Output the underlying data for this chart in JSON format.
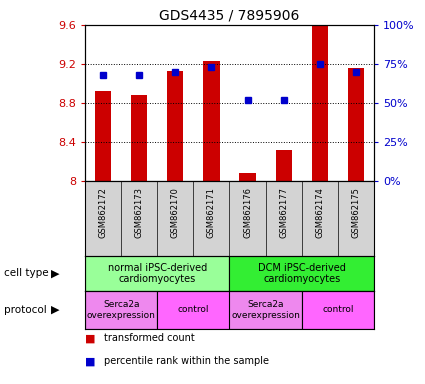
{
  "title": "GDS4435 / 7895906",
  "samples": [
    "GSM862172",
    "GSM862173",
    "GSM862170",
    "GSM862171",
    "GSM862176",
    "GSM862177",
    "GSM862174",
    "GSM862175"
  ],
  "bar_values": [
    8.92,
    8.88,
    9.13,
    9.23,
    8.08,
    8.32,
    9.59,
    9.16
  ],
  "percentile_values": [
    68,
    68,
    70,
    73,
    52,
    52,
    75,
    70
  ],
  "ylim_left": [
    8.0,
    9.6
  ],
  "ylim_right": [
    0,
    100
  ],
  "yticks_left": [
    8.0,
    8.4,
    8.8,
    9.2,
    9.6
  ],
  "ytick_labels_left": [
    "8",
    "8.4",
    "8.8",
    "9.2",
    "9.6"
  ],
  "yticks_right": [
    0,
    25,
    50,
    75,
    100
  ],
  "ytick_labels_right": [
    "0%",
    "25%",
    "50%",
    "75%",
    "100%"
  ],
  "bar_color": "#cc0000",
  "percentile_color": "#0000cc",
  "cell_type_groups": [
    {
      "label": "normal iPSC-derived\ncardiomyocytes",
      "start": 0,
      "end": 4,
      "color": "#99ff99"
    },
    {
      "label": "DCM iPSC-derived\ncardiomyocytes",
      "start": 4,
      "end": 8,
      "color": "#33ee33"
    }
  ],
  "protocol_groups": [
    {
      "label": "Serca2a\noverexpression",
      "start": 0,
      "end": 2,
      "color": "#ee88ee"
    },
    {
      "label": "control",
      "start": 2,
      "end": 4,
      "color": "#ff66ff"
    },
    {
      "label": "Serca2a\noverexpression",
      "start": 4,
      "end": 6,
      "color": "#ee88ee"
    },
    {
      "label": "control",
      "start": 6,
      "end": 8,
      "color": "#ff66ff"
    }
  ],
  "legend_red": "transformed count",
  "legend_blue": "percentile rank within the sample",
  "cell_type_label": "cell type",
  "protocol_label": "protocol"
}
